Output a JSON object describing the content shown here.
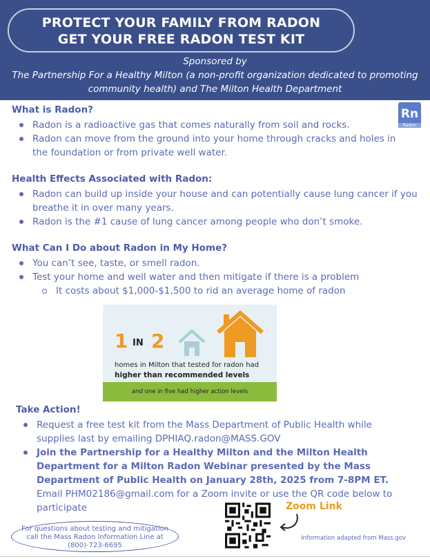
{
  "header": {
    "title_line1": "PROTECT YOUR FAMILY FROM RADON",
    "title_line2": "GET YOUR FREE RADON TEST KIT",
    "sponsored_by": "Sponsored by",
    "sponsors_line1": "The Partnership For a Healthy Milton (a non-profit organization dedicated to promoting",
    "sponsors_line2": "community health) and The Milton Health Department"
  },
  "badge": {
    "symbol": "Rn",
    "name": "Radon"
  },
  "what": {
    "heading": "What is Radon?",
    "items": [
      "Radon is a radioactive gas that comes naturally from soil and rocks.",
      "Radon can move from the ground into your home through cracks and holes in the foundation or from private well water."
    ]
  },
  "health": {
    "heading": "Health Effects Associated with Radon:",
    "items": [
      "Radon can build up inside your house and can potentially cause lung cancer if you breathe it in over many years.",
      "Radon is the #1 cause of lung cancer among people who don’t smoke."
    ]
  },
  "todo": {
    "heading": "What Can I Do about Radon in My Home?",
    "items": [
      "You can’t see, taste, or smell radon.",
      "Test your home and well water and then mitigate if there is a problem"
    ],
    "sub": "It costs about $1,000-$1,500 to rid an average home of radon"
  },
  "infographic": {
    "num1": "1",
    "in": "IN",
    "num2": "2",
    "caption": "homes in Milton that tested for radon had",
    "caption_bold": "higher than recommended levels",
    "footer_em": "and",
    "footer": " one in five had higher action levels"
  },
  "action": {
    "heading": "Take Action!",
    "item1": "Request a free test kit from the Mass Department of Public Health while supplies last by emailing DPHIAQ.radon@MASS.GOV",
    "item2_bold": "Join the Partnership for a Healthy Milton and the Milton Health Department for a Milton Radon Webinar presented by the Mass Department of Public Health on January 28th, 2025 from 7-8PM ET.",
    "item2_rest": "Email PHM02186@gmail.com for a Zoom invite or use the QR code below to participate"
  },
  "phone": {
    "line1": "For questions about testing and mitigation",
    "line2": "call the Mass Radon Information Line at",
    "number": "(800)-723-6695"
  },
  "zoom_link": "Zoom Link",
  "source": "Information adapted from Mass.gov",
  "colors": {
    "header": "#3b4f8a",
    "text": "#5b6ab4",
    "orange": "#ef9a22",
    "green": "#8bbb3c"
  }
}
